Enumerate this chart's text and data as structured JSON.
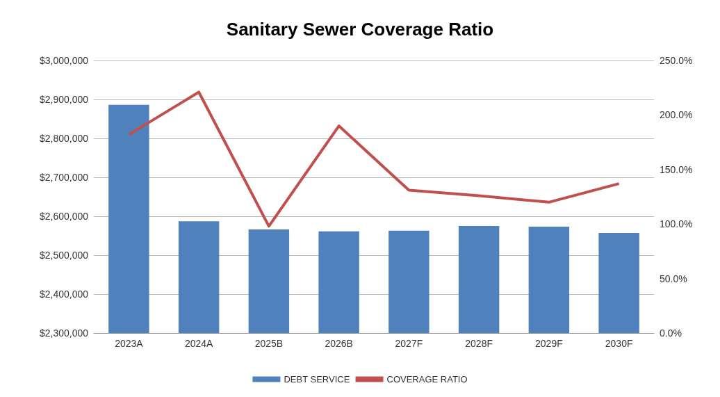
{
  "chart_data": {
    "type": "bar",
    "title": "Sanitary Sewer Coverage Ratio",
    "categories": [
      "2023A",
      "2024A",
      "2025B",
      "2026B",
      "2027F",
      "2028F",
      "2029F",
      "2030F"
    ],
    "series": [
      {
        "name": "DEBT SERVICE",
        "color": "#4f81bd",
        "values": [
          2886000,
          2587000,
          2566000,
          2561000,
          2563000,
          2575000,
          2573000,
          2557000
        ]
      },
      {
        "name": "COVERAGE RATIO",
        "type": "line",
        "axis": "y2",
        "color": "#c0504d",
        "values": [
          182,
          221,
          98,
          190,
          131,
          126,
          120,
          137
        ]
      }
    ],
    "ylim": [
      2300000,
      3000000
    ],
    "yticks": [
      {
        "value": 2300000,
        "label": "$2,300,000"
      },
      {
        "value": 2400000,
        "label": "$2,400,000"
      },
      {
        "value": 2500000,
        "label": "$2,500,000"
      },
      {
        "value": 2600000,
        "label": "$2,600,000"
      },
      {
        "value": 2700000,
        "label": "$2,700,000"
      },
      {
        "value": 2800000,
        "label": "$2,800,000"
      },
      {
        "value": 2900000,
        "label": "$2,900,000"
      },
      {
        "value": 3000000,
        "label": "$3,000,000"
      }
    ],
    "y2lim": [
      0,
      250
    ],
    "y2ticks": [
      {
        "value": 0,
        "label": "0.0%"
      },
      {
        "value": 50,
        "label": "50.0%"
      },
      {
        "value": 100,
        "label": "100.0%"
      },
      {
        "value": 150,
        "label": "150.0%"
      },
      {
        "value": 200,
        "label": "200.0%"
      },
      {
        "value": 250,
        "label": "250.0%"
      }
    ],
    "grid": "y",
    "legend": "bottom",
    "marker": "none",
    "line_style": "solid"
  }
}
